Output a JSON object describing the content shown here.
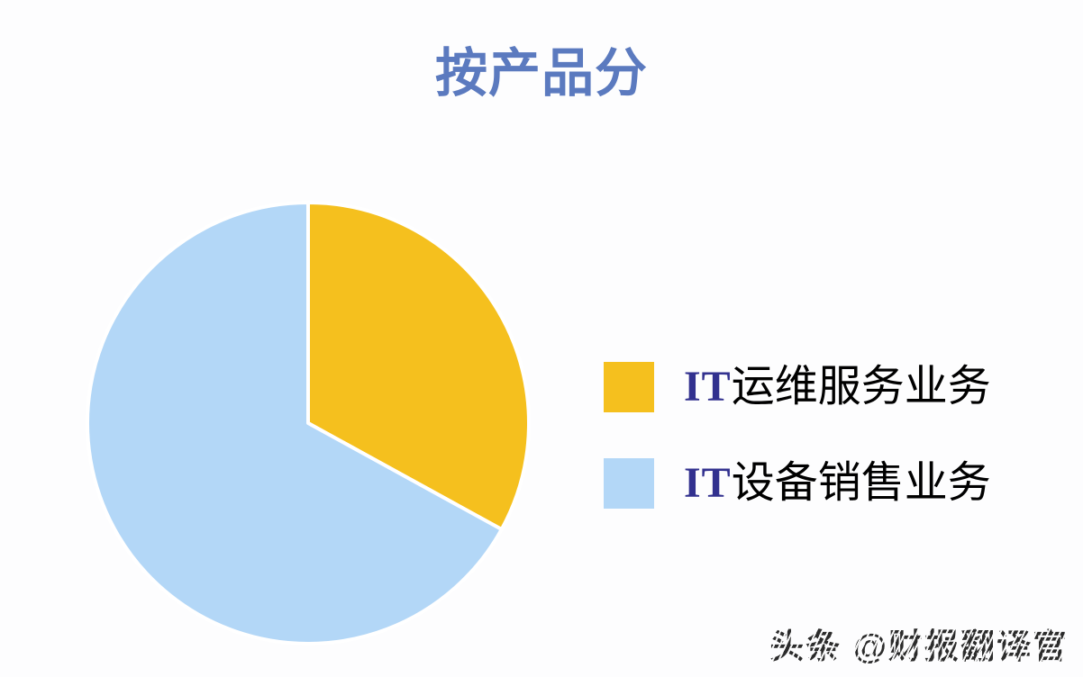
{
  "page": {
    "background_color": "#fdfdfe"
  },
  "header": {
    "title": "按产品分",
    "title_color": "#5b7abf"
  },
  "chart_data": {
    "type": "pie",
    "title": "按产品分",
    "start_angle_deg": 0,
    "direction": "clockwise",
    "legend_position": "right",
    "slice_gap_color": "#ffffff",
    "series": [
      {
        "label": "IT运维服务业务",
        "label_prefix": "IT",
        "label_cjk": "运维服务业务",
        "value_pct": 33,
        "color": "#f5c01e"
      },
      {
        "label": "IT设备销售业务",
        "label_prefix": "IT",
        "label_cjk": "设备销售业务",
        "value_pct": 67,
        "color": "#b3d7f7"
      }
    ],
    "label_prefix_color": "#32318f",
    "label_cjk_color": "#000000"
  },
  "watermark": {
    "text": "头条 @财报翻译官"
  }
}
